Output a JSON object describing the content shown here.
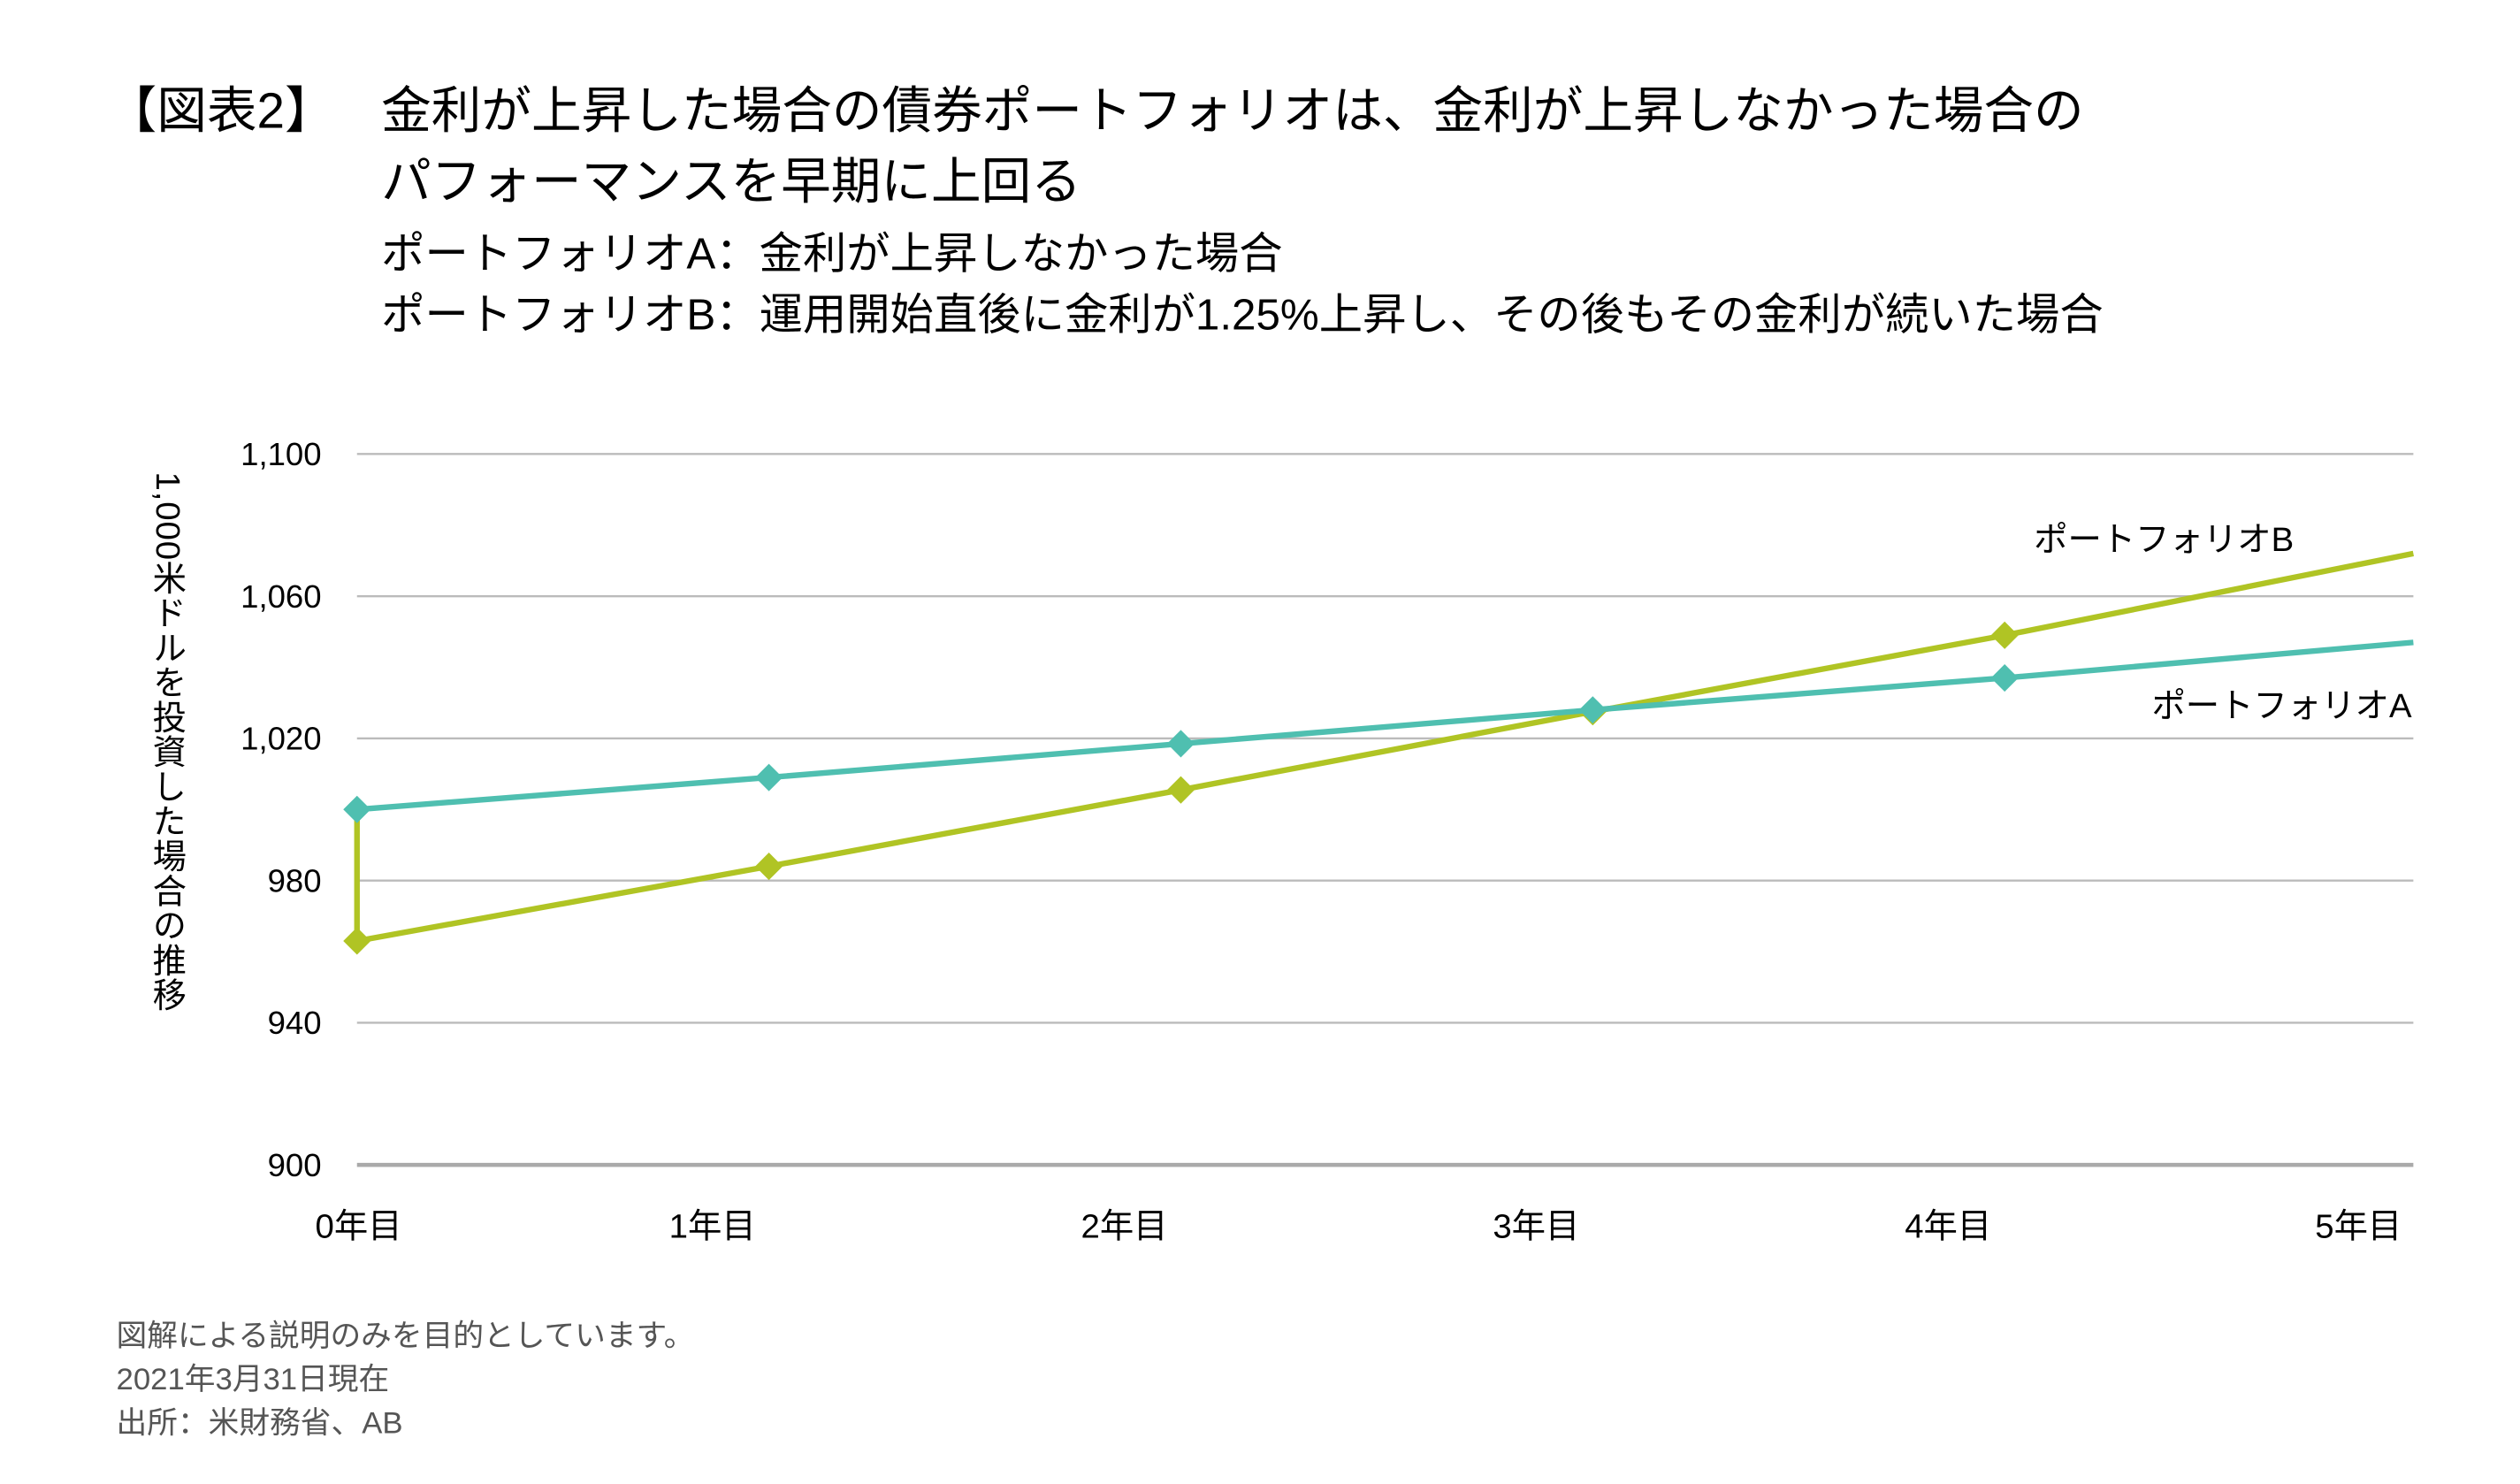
{
  "header": {
    "figure_label": "【図表2】",
    "title_line1": "金利が上昇した場合の債券ポートフォリオは、金利が上昇しなかった場合の",
    "title_line2": "パフォーマンスを早期に上回る",
    "subtitle_a": "ポートフォリオA：金利が上昇しなかった場合",
    "subtitle_b": "ポートフォリオB：運用開始直後に金利が1.25%上昇し、その後もその金利が続いた場合"
  },
  "chart_data": {
    "type": "line",
    "ylabel": "1,000米ドルを投資した場合の推移",
    "xlabel": "",
    "ylim": [
      900,
      1100
    ],
    "yticks": [
      "900",
      "940",
      "980",
      "1,020",
      "1,060",
      "1,100"
    ],
    "ytick_values": [
      900,
      940,
      980,
      1020,
      1060,
      1100
    ],
    "xticks": [
      "0年目",
      "1年目",
      "2年目",
      "3年目",
      "4年目",
      "5年目"
    ],
    "xlim": [
      0,
      5
    ],
    "grid": true,
    "series": [
      {
        "name": "ポートフォリオB",
        "color": "#B0C424",
        "x": [
          0,
          0,
          1,
          2,
          3,
          4,
          5
        ],
        "y": [
          1000,
          963,
          984,
          1005.5,
          1027.5,
          1049,
          1072
        ],
        "markers": [
          false,
          true,
          true,
          true,
          true,
          true,
          false
        ]
      },
      {
        "name": "ポートフォリオA",
        "color": "#4FBFB0",
        "x": [
          0,
          1,
          2,
          3,
          4,
          5
        ],
        "y": [
          1000,
          1009,
          1018.5,
          1028,
          1037,
          1047
        ],
        "markers": [
          true,
          true,
          true,
          true,
          true,
          false
        ]
      }
    ]
  },
  "footnotes": [
    "図解による説明のみを目的としています。",
    "2021年3月31日現在",
    "出所：米財務省、AB"
  ]
}
